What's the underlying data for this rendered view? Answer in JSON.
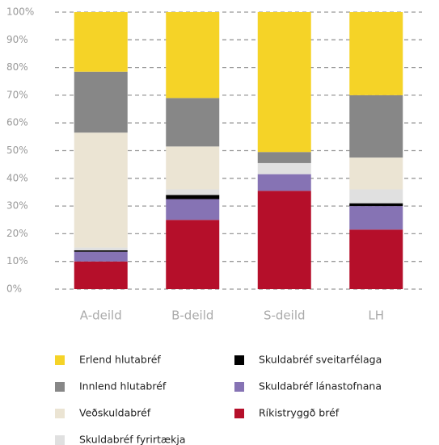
{
  "chart_data": {
    "type": "stacked_bar",
    "categories": [
      "A-deild",
      "B-deild",
      "S-deild",
      "LH"
    ],
    "series": [
      {
        "name": "Ríkistryggð bréf",
        "color": "#b50f2a",
        "values": [
          10,
          25,
          35.5,
          21.5
        ]
      },
      {
        "name": "Skuldabréf lánastofnana",
        "color": "#8673b4",
        "values": [
          3.5,
          7.5,
          6,
          8.5
        ]
      },
      {
        "name": "Skuldabréf sveitarfélaga",
        "color": "#000000",
        "values": [
          0.5,
          1.5,
          0,
          1
        ]
      },
      {
        "name": "Skuldabréf fyrirtækja",
        "color": "#e0e0e0",
        "values": [
          1,
          2,
          4,
          5
        ]
      },
      {
        "name": "Veðskuldabréf",
        "color": "#ebe4d3",
        "values": [
          41.5,
          15.5,
          0,
          11.5
        ]
      },
      {
        "name": "Innlend hlutabréf",
        "color": "#878787",
        "values": [
          22,
          17.5,
          4,
          22.5
        ]
      },
      {
        "name": "Erlend hlutabréf",
        "color": "#f5d327",
        "values": [
          21.5,
          31,
          50.5,
          30
        ]
      }
    ],
    "ylim": [
      0,
      100
    ],
    "yticks": [
      {
        "value": 0,
        "label": "0%"
      },
      {
        "value": 10,
        "label": "10%"
      },
      {
        "value": 20,
        "label": "20%"
      },
      {
        "value": 30,
        "label": "30%"
      },
      {
        "value": 40,
        "label": "40%"
      },
      {
        "value": 50,
        "label": "50%"
      },
      {
        "value": 60,
        "label": "60%"
      },
      {
        "value": 70,
        "label": "70%"
      },
      {
        "value": 80,
        "label": "80%"
      },
      {
        "value": 90,
        "label": "90%"
      },
      {
        "value": 100,
        "label": "100%"
      }
    ],
    "grid": true
  }
}
